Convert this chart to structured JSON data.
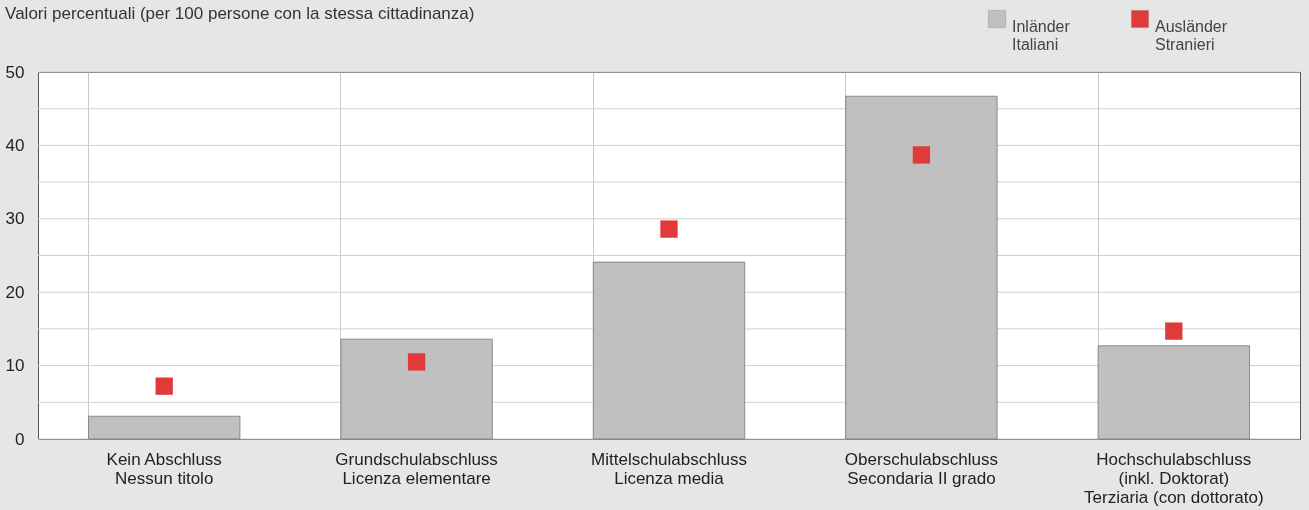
{
  "chart_data": {
    "type": "bar",
    "title": "Valori percentuali (per 100 persone con la stessa cittadinanza)",
    "categories": [
      "Kein Abschluss\nNessun titolo",
      "Grundschulabschluss\nLicenza elementare",
      "Mittelschulabschluss\nLicenza media",
      "Oberschulabschluss\nSecondaria II grado",
      "Hochschulabschluss\n(inkl. Doktorat)\nTerziaria (con dottorato)"
    ],
    "series": [
      {
        "name": "Inländer\nItaliani",
        "color": "#c0c0c0",
        "values": [
          3.1,
          13.6,
          24.1,
          46.7,
          12.7
        ]
      },
      {
        "name": "Ausländer\nStranieri",
        "color": "#e03a3a",
        "type": "scatter",
        "marker": "square",
        "values": [
          7.2,
          10.5,
          28.6,
          38.7,
          14.7
        ]
      }
    ],
    "ylim": [
      0,
      50
    ],
    "yticks": [
      0,
      {
        "value": 5,
        "label": null
      },
      10,
      {
        "value": 15,
        "label": null
      },
      20,
      {
        "value": 25,
        "label": null
      },
      30,
      {
        "value": 35,
        "label": null
      },
      40,
      {
        "value": 45,
        "label": null
      },
      50
    ],
    "grid": true,
    "legend": "top right"
  }
}
